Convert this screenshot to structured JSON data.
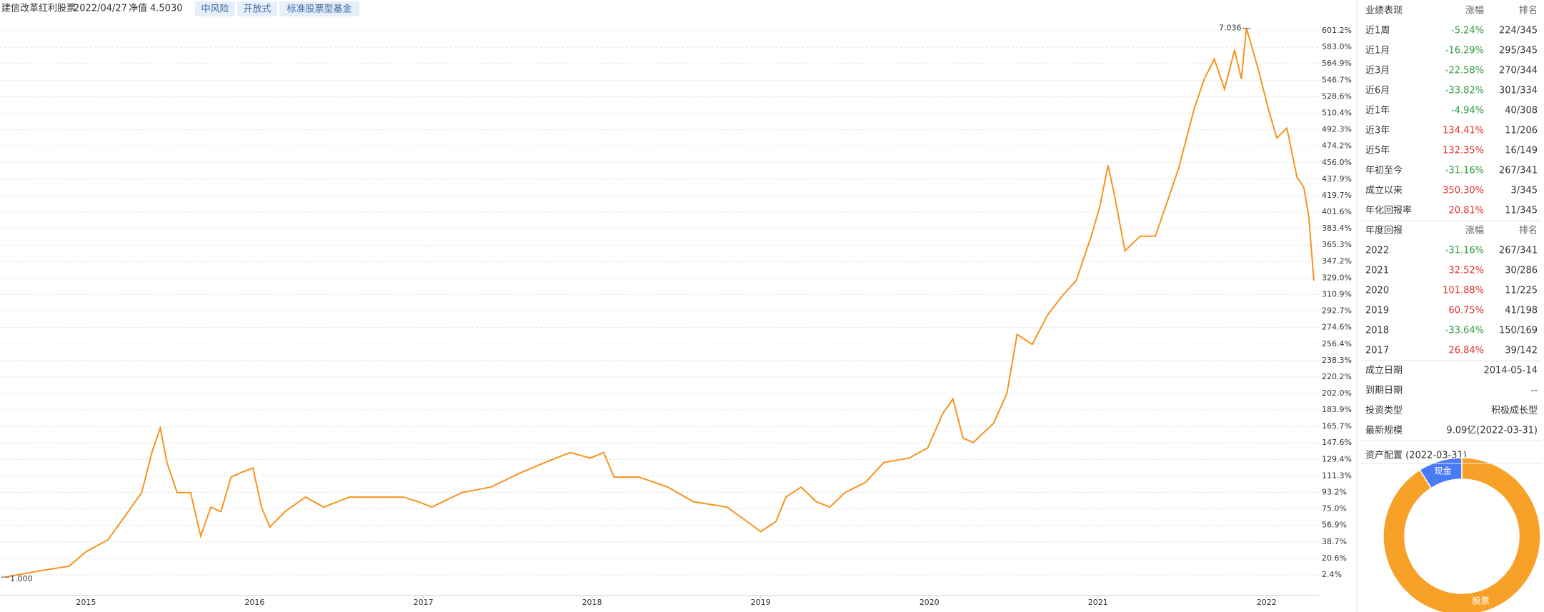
{
  "header": {
    "fund": "建信改革红利股票",
    "date": "2022/04/27",
    "nav_label": "净值",
    "nav": "4.5030",
    "tags": [
      "中风险",
      "开放式",
      "标准股票型基金"
    ]
  },
  "performance": {
    "headers": [
      "业绩表现",
      "涨幅",
      "排名"
    ],
    "rows": [
      [
        "近1周",
        "-5.24%",
        "224/345"
      ],
      [
        "近1月",
        "-16.29%",
        "295/345"
      ],
      [
        "近3月",
        "-22.58%",
        "270/344"
      ],
      [
        "近6月",
        "-33.82%",
        "301/334"
      ],
      [
        "近1年",
        "-4.94%",
        "40/308"
      ],
      [
        "近3年",
        "134.41%",
        "11/206"
      ],
      [
        "近5年",
        "132.35%",
        "16/149"
      ],
      [
        "年初至今",
        "-31.16%",
        "267/341"
      ],
      [
        "成立以来",
        "350.30%",
        "3/345"
      ],
      [
        "年化回报率",
        "20.81%",
        "11/345"
      ]
    ]
  },
  "annual": {
    "headers": [
      "年度回报",
      "涨幅",
      "排名"
    ],
    "rows": [
      [
        "2022",
        "-31.16%",
        "267/341"
      ],
      [
        "2021",
        "32.52%",
        "30/286"
      ],
      [
        "2020",
        "101.88%",
        "11/225"
      ],
      [
        "2019",
        "60.75%",
        "41/198"
      ],
      [
        "2018",
        "-33.64%",
        "150/169"
      ],
      [
        "2017",
        "26.84%",
        "39/142"
      ]
    ]
  },
  "info": [
    [
      "成立日期",
      "2014-05-14"
    ],
    [
      "到期日期",
      "--"
    ],
    [
      "投资类型",
      "积极成长型"
    ],
    [
      "最新规模",
      "9.09亿(2022-03-31)"
    ]
  ],
  "chart_data": [
    {
      "type": "line",
      "color": "#f7931e",
      "grid": true,
      "annotations": [
        "1.000",
        "7.036"
      ],
      "x": [
        2014.52,
        2014.72,
        2014.9,
        2015.0,
        2015.13,
        2015.25,
        2015.33,
        2015.39,
        2015.44,
        2015.48,
        2015.54,
        2015.62,
        2015.68,
        2015.74,
        2015.8,
        2015.86,
        2015.92,
        2015.99,
        2016.04,
        2016.09,
        2016.18,
        2016.3,
        2016.41,
        2016.56,
        2016.7,
        2016.88,
        2016.97,
        2017.05,
        2017.23,
        2017.4,
        2017.58,
        2017.72,
        2017.87,
        2017.99,
        2018.07,
        2018.13,
        2018.28,
        2018.45,
        2018.6,
        2018.8,
        2018.92,
        2019.0,
        2019.09,
        2019.15,
        2019.24,
        2019.33,
        2019.41,
        2019.5,
        2019.62,
        2019.73,
        2019.88,
        2019.99,
        2020.08,
        2020.14,
        2020.2,
        2020.26,
        2020.38,
        2020.46,
        2020.52,
        2020.61,
        2020.7,
        2020.79,
        2020.87,
        2020.96,
        2021.01,
        2021.06,
        2021.1,
        2021.16,
        2021.25,
        2021.34,
        2021.42,
        2021.48,
        2021.57,
        2021.63,
        2021.69,
        2021.75,
        2021.81,
        2021.85,
        2021.88,
        2021.95,
        2022.01,
        2022.06,
        2022.12,
        2022.18,
        2022.22,
        2022.25,
        2022.28
      ],
      "values": [
        0,
        6.7,
        12,
        28,
        41,
        72,
        93,
        137,
        164,
        126,
        93,
        93,
        45,
        77,
        72,
        110,
        115,
        120,
        77,
        55,
        72,
        88,
        77,
        88,
        88,
        88,
        83,
        77,
        93,
        99,
        115,
        126,
        137,
        131,
        137,
        110,
        110,
        99,
        83,
        77,
        61,
        50,
        61,
        88,
        99,
        83,
        77,
        93,
        104,
        126,
        131,
        142,
        180,
        196,
        153,
        148,
        169,
        202,
        267,
        256,
        288,
        310,
        326,
        375,
        407,
        453,
        418,
        359,
        375,
        375,
        418,
        451,
        515,
        548,
        570,
        537,
        580,
        548,
        604,
        559,
        515,
        483,
        494,
        440,
        429,
        397,
        326
      ],
      "xlim": [
        2014.49,
        2022.31
      ],
      "xticks": [
        2015,
        2016,
        2017,
        2018,
        2019,
        2020,
        2021,
        2022
      ],
      "ylim": [
        -18,
        611
      ],
      "yticks": [
        {
          "value": 2.4,
          "label": "2.4%"
        },
        {
          "value": 20.6,
          "label": "20.6%"
        },
        {
          "value": 38.7,
          "label": "38.7%"
        },
        {
          "value": 56.9,
          "label": "56.9%"
        },
        {
          "value": 75.0,
          "label": "75.0%"
        },
        {
          "value": 93.2,
          "label": "93.2%"
        },
        {
          "value": 111.3,
          "label": "111.3%"
        },
        {
          "value": 129.4,
          "label": "129.4%"
        },
        {
          "value": 147.6,
          "label": "147.6%"
        },
        {
          "value": 165.7,
          "label": "165.7%"
        },
        {
          "value": 183.9,
          "label": "183.9%"
        },
        {
          "value": 202.0,
          "label": "202.0%"
        },
        {
          "value": 220.2,
          "label": "220.2%"
        },
        {
          "value": 238.3,
          "label": "238.3%"
        },
        {
          "value": 256.4,
          "label": "256.4%"
        },
        {
          "value": 274.6,
          "label": "274.6%"
        },
        {
          "value": 292.7,
          "label": "292.7%"
        },
        {
          "value": 310.9,
          "label": "310.9%"
        },
        {
          "value": 329.0,
          "label": "329.0%"
        },
        {
          "value": 347.2,
          "label": "347.2%"
        },
        {
          "value": 365.3,
          "label": "365.3%"
        },
        {
          "value": 383.4,
          "label": "383.4%"
        },
        {
          "value": 401.6,
          "label": "401.6%"
        },
        {
          "value": 419.7,
          "label": "419.7%"
        },
        {
          "value": 437.9,
          "label": "437.9%"
        },
        {
          "value": 456.0,
          "label": "456.0%"
        },
        {
          "value": 474.2,
          "label": "474.2%"
        },
        {
          "value": 492.3,
          "label": "492.3%"
        },
        {
          "value": 510.4,
          "label": "510.4%"
        },
        {
          "value": 528.6,
          "label": "528.6%"
        },
        {
          "value": 546.7,
          "label": "546.7%"
        },
        {
          "value": 564.9,
          "label": "564.9%"
        },
        {
          "value": 583.0,
          "label": "583.0%"
        },
        {
          "value": 601.2,
          "label": "601.2%"
        }
      ]
    },
    {
      "type": "pie",
      "title": "资产配置 (2022-03-31)",
      "categories": [
        "现金",
        "股票"
      ],
      "values": [
        9,
        91
      ],
      "colors": [
        "#4a7bf7",
        "#f7a128"
      ]
    }
  ]
}
